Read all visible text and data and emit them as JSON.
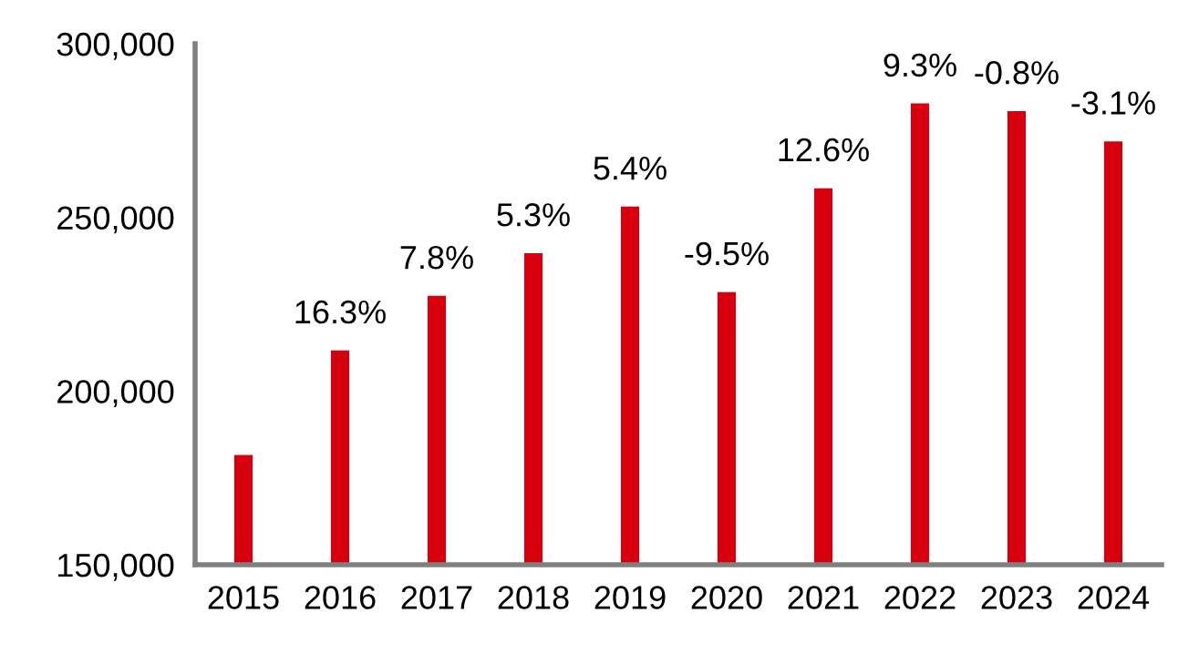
{
  "chart_data": {
    "type": "bar",
    "categories": [
      "2015",
      "2016",
      "2017",
      "2018",
      "2019",
      "2020",
      "2021",
      "2022",
      "2023",
      "2024"
    ],
    "values": [
      181600,
      211700,
      227400,
      239700,
      253100,
      228500,
      258400,
      282800,
      280600,
      271900
    ],
    "annotations": [
      {
        "text": "16.3%",
        "x": "2016",
        "y": 211700
      },
      {
        "text": "7.8%",
        "x": "2017",
        "y": 227400
      },
      {
        "text": "5.3%",
        "x": "2018",
        "y": 239700
      },
      {
        "text": "5.4%",
        "x": "2019",
        "y": 253100
      },
      {
        "text": "-9.5%",
        "x": "2020",
        "y": 228500
      },
      {
        "text": "12.6%",
        "x": "2021",
        "y": 258400
      },
      {
        "text": "9.3%",
        "x": "2022",
        "y": 282800
      },
      {
        "text": "-0.8%",
        "x": "2023",
        "y": 280600
      },
      {
        "text": "-3.1%",
        "x": "2024",
        "y": 271900
      }
    ],
    "color": "#d7000f",
    "ylim": [
      150000,
      300000
    ],
    "yticks": [
      {
        "value": 150000,
        "label": "150,000"
      },
      {
        "value": 200000,
        "label": "200,000"
      },
      {
        "value": 250000,
        "label": "250,000"
      },
      {
        "value": 300000,
        "label": "300,000"
      }
    ],
    "grid": false
  }
}
